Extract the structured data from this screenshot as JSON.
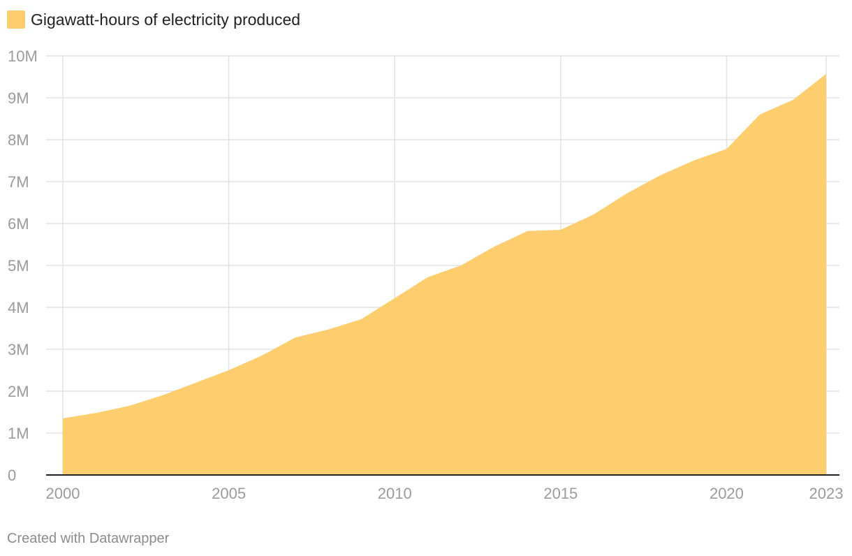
{
  "chart_data": {
    "type": "area",
    "title": "",
    "xlabel": "",
    "ylabel": "",
    "legend": {
      "position": "top-left",
      "entries": [
        {
          "name": "Gigawatt-hours of electricity produced",
          "color": "#FECE6E"
        }
      ]
    },
    "series": [
      {
        "name": "Gigawatt-hours of electricity produced",
        "color": "#FECE6E",
        "values": [
          1350000,
          1480000,
          1650000,
          1900000,
          2200000,
          2500000,
          2850000,
          3280000,
          3470000,
          3720000,
          4220000,
          4720000,
          5000000,
          5450000,
          5820000,
          5850000,
          6220000,
          6720000,
          7150000,
          7500000,
          7780000,
          8600000,
          8950000,
          9570000
        ]
      }
    ],
    "x": [
      2000,
      2001,
      2002,
      2003,
      2004,
      2005,
      2006,
      2007,
      2008,
      2009,
      2010,
      2011,
      2012,
      2013,
      2014,
      2015,
      2016,
      2017,
      2018,
      2019,
      2020,
      2021,
      2022,
      2023
    ],
    "xlim": [
      2000,
      2023
    ],
    "ylim": [
      0,
      10000000
    ],
    "x_ticks": [
      {
        "value": 2000,
        "label": "2000"
      },
      {
        "value": 2005,
        "label": "2005"
      },
      {
        "value": 2010,
        "label": "2010"
      },
      {
        "value": 2015,
        "label": "2015"
      },
      {
        "value": 2020,
        "label": "2020"
      },
      {
        "value": 2023,
        "label": "2023"
      }
    ],
    "y_ticks": [
      {
        "value": 0,
        "label": "0"
      },
      {
        "value": 1000000,
        "label": "1M"
      },
      {
        "value": 2000000,
        "label": "2M"
      },
      {
        "value": 3000000,
        "label": "3M"
      },
      {
        "value": 4000000,
        "label": "4M"
      },
      {
        "value": 5000000,
        "label": "5M"
      },
      {
        "value": 6000000,
        "label": "6M"
      },
      {
        "value": 7000000,
        "label": "7M"
      },
      {
        "value": 8000000,
        "label": "8M"
      },
      {
        "value": 9000000,
        "label": "9M"
      },
      {
        "value": 10000000,
        "label": "10M"
      }
    ],
    "grid": true
  },
  "footer": {
    "credit": "Created with Datawrapper"
  }
}
